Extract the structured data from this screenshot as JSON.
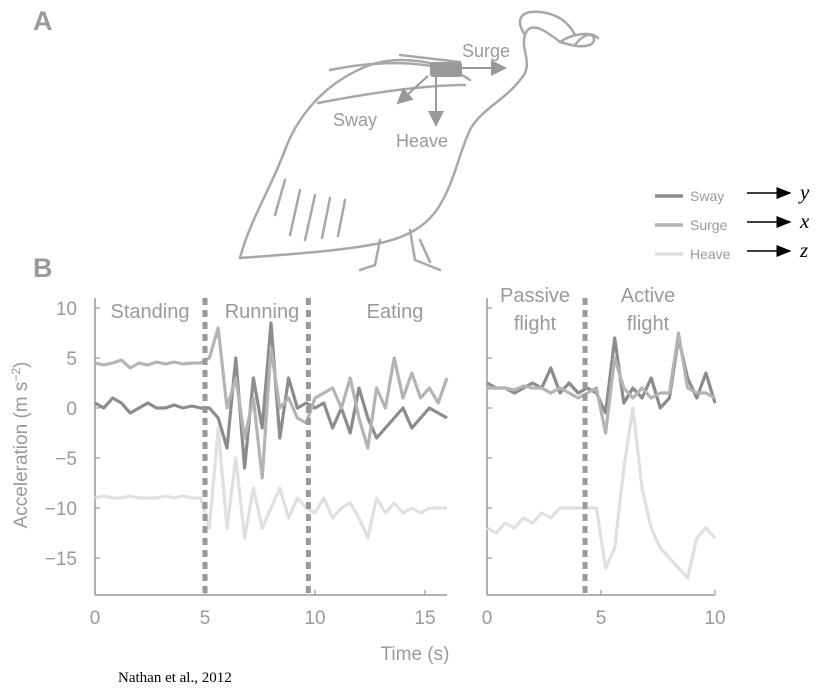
{
  "panels": [
    "A",
    "B"
  ],
  "diagram": {
    "labels": [
      "Surge",
      "Sway",
      "Heave"
    ]
  },
  "axis_mapping": [
    "y",
    "x",
    "z"
  ],
  "citation": "Nathan et al., 2012",
  "legend": "right",
  "chart_data": [
    {
      "type": "line",
      "ylabel": [
        "Acceleration (m s",
        "−2",
        ")"
      ],
      "xlabel": "Time (s)",
      "xlim": [
        0,
        16
      ],
      "xticks": [
        0,
        5,
        10,
        15
      ],
      "ylim": [
        -18.5,
        11
      ],
      "yticks": [
        10,
        5,
        0,
        {
          "value": -5,
          "label": "−5"
        },
        {
          "value": -10,
          "label": "−10"
        },
        {
          "value": -15,
          "label": "−15"
        }
      ],
      "phases": [
        [
          "Standing"
        ],
        [
          "Running"
        ],
        [
          "Eating"
        ]
      ],
      "dividers": [
        5,
        9.7
      ],
      "x": [
        0,
        0.4,
        0.8,
        1.2,
        1.6,
        2,
        2.4,
        2.8,
        3.2,
        3.6,
        4,
        4.4,
        4.8,
        5.2,
        5.6,
        6,
        6.4,
        6.8,
        7.2,
        7.6,
        8,
        8.4,
        8.8,
        9.2,
        9.6,
        10,
        10.4,
        10.8,
        11.2,
        11.6,
        12,
        12.4,
        12.8,
        13.2,
        13.6,
        14,
        14.4,
        14.8,
        15.2,
        15.6,
        16
      ],
      "series": [
        {
          "name": "Sway",
          "color": "#8c8c8c",
          "values": [
            0.5,
            0,
            1,
            0.5,
            -0.5,
            0,
            0.5,
            0,
            0,
            0.3,
            0,
            0.2,
            0,
            0,
            -1,
            -4,
            5,
            -6,
            3,
            -2,
            8.5,
            -3,
            3,
            0,
            0.5,
            0,
            0.5,
            -2,
            0,
            -2.5,
            2,
            -1,
            -3,
            -2,
            -1,
            0,
            -2,
            -1,
            0,
            -0.5,
            -1
          ]
        },
        {
          "name": "Surge",
          "color": "#b4b4b4",
          "values": [
            4.5,
            4.3,
            4.5,
            4.8,
            4,
            4.5,
            4.3,
            4.6,
            4.4,
            4.6,
            4.4,
            4.5,
            4.5,
            5,
            8,
            0,
            3,
            -3,
            1,
            -7,
            6,
            0,
            1,
            -1,
            -1.5,
            1,
            1.5,
            2,
            0,
            3,
            -1,
            -4,
            2,
            0,
            5,
            1,
            3.5,
            1,
            2,
            0.5,
            3
          ]
        },
        {
          "name": "Heave",
          "color": "#e0e0e0",
          "values": [
            -9,
            -8.8,
            -9,
            -9,
            -8.8,
            -9,
            -9,
            -9,
            -8.8,
            -9,
            -8.8,
            -9,
            -9,
            -12,
            -2,
            -12,
            -5,
            -13,
            -8,
            -12,
            -10,
            -8,
            -11,
            -9,
            -10,
            -10.5,
            -9,
            -11,
            -10,
            -9.5,
            -11,
            -13,
            -9,
            -10.5,
            -9.5,
            -10.5,
            -10,
            -10.5,
            -10,
            -10,
            -10
          ]
        }
      ]
    },
    {
      "type": "line",
      "xlim": [
        0,
        10
      ],
      "xticks": [
        0,
        5,
        10
      ],
      "ylim": [
        -18.5,
        11
      ],
      "yticks": [
        10,
        5,
        0,
        -5,
        -10,
        -15
      ],
      "phases": [
        [
          "Passive",
          "flight"
        ],
        [
          "Active",
          "flight"
        ]
      ],
      "dividers": [
        4.3
      ],
      "x": [
        0,
        0.4,
        0.8,
        1.2,
        1.6,
        2,
        2.4,
        2.8,
        3.2,
        3.6,
        4,
        4.4,
        4.8,
        5.2,
        5.6,
        6,
        6.4,
        6.8,
        7.2,
        7.6,
        8,
        8.4,
        8.8,
        9.2,
        9.6,
        10
      ],
      "series": [
        {
          "name": "Sway",
          "color": "#8c8c8c",
          "values": [
            2.5,
            2,
            2,
            1.5,
            2,
            2.5,
            2,
            4,
            1.5,
            2.5,
            1.5,
            2,
            1.5,
            -0.5,
            7,
            0.5,
            2,
            1,
            3,
            0,
            1,
            7,
            3,
            1,
            3.5,
            0.5
          ]
        },
        {
          "name": "Surge",
          "color": "#b4b4b4",
          "values": [
            2,
            2,
            2,
            1.8,
            2.2,
            2,
            2,
            1.5,
            2,
            1.5,
            1,
            1.5,
            2,
            -2.5,
            5,
            2,
            1,
            2,
            1,
            1.5,
            1.5,
            7.5,
            2,
            1.5,
            1.5,
            1
          ]
        },
        {
          "name": "Heave",
          "color": "#e0e0e0",
          "values": [
            -12,
            -12.5,
            -11.5,
            -12,
            -11,
            -11.5,
            -10.5,
            -11,
            -10,
            -10,
            -10,
            -10,
            -10,
            -16,
            -14,
            -6,
            0,
            -8,
            -12,
            -14,
            -15,
            -16,
            -17,
            -13,
            -12,
            -13
          ]
        }
      ]
    }
  ]
}
